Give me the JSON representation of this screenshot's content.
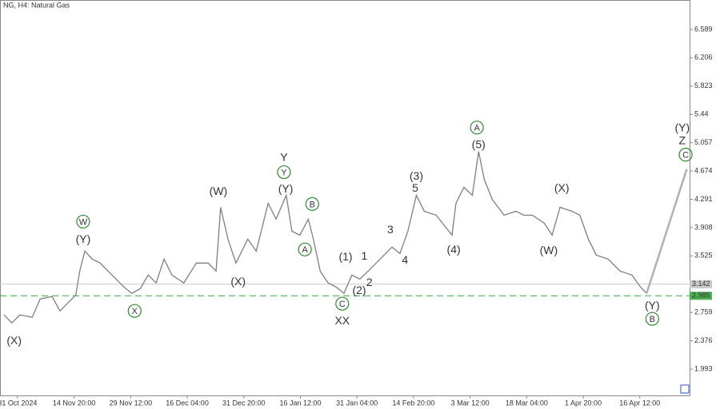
{
  "chart_data": {
    "type": "line",
    "title": "NG, H4:  Natural Gas",
    "color": "#7f7f7f",
    "x": [
      -0.24,
      -0.1,
      0.04,
      0.26,
      0.4,
      0.61,
      0.75,
      0.89,
      1.03,
      1.1,
      1.19,
      1.32,
      1.46,
      1.67,
      1.88,
      2.02,
      2.17,
      2.31,
      2.45,
      2.59,
      2.73,
      2.94,
      3.16,
      3.37,
      3.51,
      3.59,
      3.72,
      3.86,
      4.07,
      4.22,
      4.43,
      4.57,
      4.75,
      4.85,
      4.99,
      5.14,
      5.23,
      5.35,
      5.49,
      5.63,
      5.77,
      5.91,
      6.05,
      6.2,
      6.41,
      6.62,
      6.76,
      6.9,
      7.05,
      7.19,
      7.4,
      7.68,
      7.75,
      7.89,
      8.04,
      8.15,
      8.25,
      8.39,
      8.6,
      8.81,
      8.95,
      9.1,
      9.31,
      9.45,
      9.59,
      9.8,
      9.94,
      10.09,
      10.23,
      10.44,
      10.65,
      10.86,
      11.01,
      11.12
    ],
    "values": [
      2.727,
      2.619,
      2.727,
      2.695,
      2.943,
      2.975,
      2.781,
      2.889,
      2.997,
      3.32,
      3.59,
      3.482,
      3.428,
      3.266,
      3.105,
      3.018,
      3.083,
      3.266,
      3.159,
      3.482,
      3.266,
      3.159,
      3.428,
      3.428,
      3.32,
      4.183,
      3.752,
      3.428,
      3.752,
      3.59,
      4.237,
      4.022,
      4.345,
      3.86,
      3.806,
      4.022,
      3.752,
      3.32,
      3.159,
      3.105,
      3.018,
      3.266,
      3.212,
      3.32,
      3.482,
      3.644,
      3.558,
      3.86,
      4.345,
      4.129,
      4.076,
      3.806,
      4.237,
      4.453,
      4.345,
      4.938,
      4.561,
      4.291,
      4.076,
      4.129,
      4.076,
      4.076,
      3.968,
      3.806,
      4.183,
      4.129,
      4.076,
      3.752,
      3.536,
      3.482,
      3.32,
      3.266,
      3.105,
      3.018
    ],
    "projection": {
      "color": "#b0b0b0",
      "x": [
        11.12,
        11.83
      ],
      "values": [
        3.018,
        4.701
      ]
    },
    "current_price": 3.142,
    "level": {
      "value": 2.985,
      "color": "#4caf50"
    },
    "xlim": [
      -0.31,
      11.88
    ],
    "ylim": [
      1.637,
      6.988
    ],
    "xticks": [
      {
        "value": 0,
        "label": "31 Oct 2024"
      },
      {
        "value": 1,
        "label": "14 Nov 20:00"
      },
      {
        "value": 2,
        "label": "29 Nov 12:00"
      },
      {
        "value": 3,
        "label": "16 Dec 04:00"
      },
      {
        "value": 4,
        "label": "31 Dec 20:00"
      },
      {
        "value": 5,
        "label": "16 Jan 12:00"
      },
      {
        "value": 6,
        "label": "31 Jan 04:00"
      },
      {
        "value": 7,
        "label": "14 Feb 20:00"
      },
      {
        "value": 8,
        "label": "3 Mar 12:00"
      },
      {
        "value": 9,
        "label": "18 Mar 04:00"
      },
      {
        "value": 10,
        "label": "1 Apr 20:00"
      },
      {
        "value": 11,
        "label": "16 Apr 12:00"
      }
    ],
    "yticks": [
      6.589,
      6.206,
      5.823,
      5.44,
      5.057,
      4.674,
      4.291,
      3.908,
      3.525,
      2.759,
      2.376,
      1.993
    ],
    "annotations": [
      {
        "text": "(X)",
        "x": -0.06,
        "y": 2.382,
        "color": "#1f2a7a"
      },
      {
        "text": "W",
        "x": 1.16,
        "y": 3.989,
        "color": "#2e8b2e",
        "circled": true
      },
      {
        "text": "(Y)",
        "x": 1.16,
        "y": 3.752,
        "color": "#1f2a7a"
      },
      {
        "text": "X",
        "x": 2.07,
        "y": 2.781,
        "color": "#2e8b2e",
        "circled": true
      },
      {
        "text": "(W)",
        "x": 3.55,
        "y": 4.399,
        "color": "#1f2a7a"
      },
      {
        "text": "(X)",
        "x": 3.9,
        "y": 3.18,
        "color": "#1f2a7a"
      },
      {
        "text": "Y",
        "x": 4.71,
        "y": 4.863,
        "color": "#8b1a1a"
      },
      {
        "text": "Y",
        "x": 4.71,
        "y": 4.658,
        "color": "#2e8b2e",
        "circled": true
      },
      {
        "text": "(Y)",
        "x": 4.74,
        "y": 4.431,
        "color": "#1f2a7a"
      },
      {
        "text": "B",
        "x": 5.21,
        "y": 4.227,
        "color": "#2e8b2e",
        "circled": true
      },
      {
        "text": "A",
        "x": 5.08,
        "y": 3.612,
        "color": "#2e8b2e",
        "circled": true
      },
      {
        "text": "C",
        "x": 5.74,
        "y": 2.878,
        "color": "#2e8b2e",
        "circled": true
      },
      {
        "text": "XX",
        "x": 5.74,
        "y": 2.652,
        "color": "#8b1a1a"
      },
      {
        "text": "(1)",
        "x": 5.8,
        "y": 3.515,
        "color": "#1f2a7a"
      },
      {
        "text": "(2)",
        "x": 6.04,
        "y": 3.061,
        "color": "#1f2a7a"
      },
      {
        "text": "1",
        "x": 6.13,
        "y": 3.525,
        "color": "#8b1a1a"
      },
      {
        "text": "2",
        "x": 6.22,
        "y": 3.169,
        "color": "#8b1a1a"
      },
      {
        "text": "3",
        "x": 6.59,
        "y": 3.881,
        "color": "#8b1a1a"
      },
      {
        "text": "4",
        "x": 6.85,
        "y": 3.471,
        "color": "#8b1a1a"
      },
      {
        "text": "(3)",
        "x": 7.05,
        "y": 4.604,
        "color": "#1f2a7a"
      },
      {
        "text": "5",
        "x": 7.03,
        "y": 4.442,
        "color": "#8b1a1a"
      },
      {
        "text": "(4)",
        "x": 7.71,
        "y": 3.612,
        "color": "#1f2a7a"
      },
      {
        "text": "A",
        "x": 8.12,
        "y": 5.262,
        "color": "#2e8b2e",
        "circled": true
      },
      {
        "text": "(5)",
        "x": 8.15,
        "y": 5.036,
        "color": "#1f2a7a"
      },
      {
        "text": "(X)",
        "x": 9.62,
        "y": 4.442,
        "color": "#1f2a7a"
      },
      {
        "text": "(W)",
        "x": 9.39,
        "y": 3.601,
        "color": "#1f2a7a"
      },
      {
        "text": "(Y)",
        "x": 11.22,
        "y": 2.856,
        "color": "#1f2a7a"
      },
      {
        "text": "B",
        "x": 11.22,
        "y": 2.673,
        "color": "#2e8b2e",
        "circled": true
      },
      {
        "text": "(Y)",
        "x": 11.75,
        "y": 5.262,
        "color": "#1f2a7a"
      },
      {
        "text": "Z",
        "x": 11.75,
        "y": 5.089,
        "color": "#8b1a1a"
      },
      {
        "text": "C",
        "x": 11.81,
        "y": 4.895,
        "color": "#2e8b2e",
        "circled": true
      }
    ]
  }
}
